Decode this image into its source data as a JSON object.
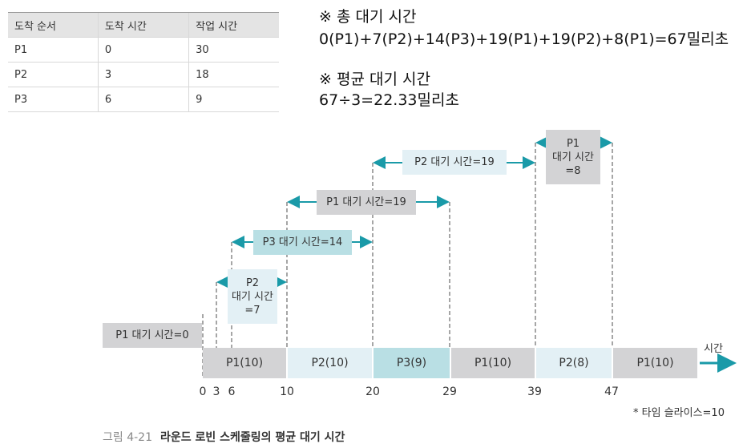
{
  "table": {
    "headers": [
      "도착 순서",
      "도착 시간",
      "작업 시간"
    ],
    "rows": [
      [
        "P1",
        "0",
        "30"
      ],
      [
        "P2",
        "3",
        "18"
      ],
      [
        "P3",
        "6",
        "9"
      ]
    ]
  },
  "notes": {
    "total_title": "※ 총 대기 시간",
    "total_formula": "0(P1)+7(P2)+14(P3)+19(P1)+19(P2)+8(P1)=67밀리초",
    "avg_title": "※ 평균 대기 시간",
    "avg_formula": "67÷3=22.33밀리초"
  },
  "wait_labels": [
    "P1 대기 시간=0",
    "P2",
    "대기 시간",
    "=7",
    "P3 대기 시간=14",
    "P1 대기 시간=19",
    "P2 대기 시간=19",
    "P1",
    "대기 시간",
    "=8"
  ],
  "blocks": [
    "P1(10)",
    "P2(10)",
    "P3(9)",
    "P1(10)",
    "P2(8)",
    "P1(10)"
  ],
  "ticks": [
    "0",
    "3",
    "6",
    "10",
    "20",
    "29",
    "39",
    "47"
  ],
  "axis_label": "시간",
  "time_slice": "* 타임 슬라이스=10",
  "caption": {
    "number": "그림 4-21",
    "title": "라운드 로빈 스케줄링의 평균 대기 시간"
  },
  "colors": {
    "teal": "#1a9aa8",
    "gray": "#d3d3d5",
    "light": "#e3f0f5",
    "mid": "#b9dfe4"
  }
}
